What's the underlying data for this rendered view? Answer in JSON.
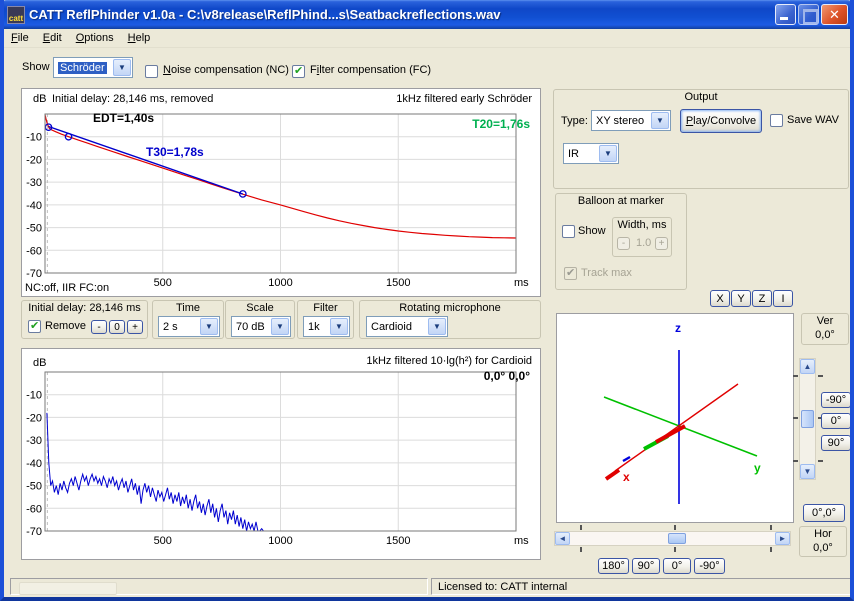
{
  "window": {
    "title": "CATT ReflPhinder v1.0a - C:\\v8release\\ReflPhind...s\\Seatbackreflections.wav",
    "icon_text": "catt"
  },
  "menu": [
    {
      "accel": "F",
      "rest": "ile"
    },
    {
      "accel": "E",
      "rest": "dit"
    },
    {
      "accel": "O",
      "rest": "ptions"
    },
    {
      "accel": "H",
      "rest": "elp"
    }
  ],
  "show": {
    "label": "Show",
    "value": "Schröder"
  },
  "compensation": {
    "nc": {
      "accel": "N",
      "rest": "oise compensation (NC)",
      "checked": false
    },
    "fc": {
      "pre": "F",
      "accel": "i",
      "rest": "lter compensation (FC)",
      "checked": true
    }
  },
  "controls": {
    "initial_delay": {
      "caption": "Initial delay: 28,146 ms",
      "remove_label": "Remove",
      "minus": "-",
      "zero": "0",
      "plus": "+",
      "checked": true
    },
    "time": {
      "caption": "Time",
      "value": "2 s"
    },
    "scale": {
      "caption": "Scale",
      "value": "70 dB"
    },
    "filter": {
      "caption": "Filter",
      "value": "1k"
    },
    "mic": {
      "caption": "Rotating microphone",
      "value": "Cardioid"
    }
  },
  "output": {
    "caption": "Output",
    "type_label": "Type:",
    "type_value": "XY stereo",
    "play": {
      "accel": "P",
      "rest": "lay/Convolve"
    },
    "save_wav": "Save WAV",
    "ir_value": "IR"
  },
  "balloon": {
    "caption": "Balloon at marker",
    "show_label": "Show",
    "width_caption": "Width, ms",
    "width_value": "1.0",
    "minus": "-",
    "plus": "+",
    "track_label": "Track max"
  },
  "axis_buttons": [
    "X",
    "Y",
    "Z",
    "I"
  ],
  "view3d": {
    "x_label": "x",
    "y_label": "y",
    "z_label": "z",
    "x_color": "#e00000",
    "y_color": "#00c000",
    "z_color": "#0000dd"
  },
  "ver_panel": {
    "label": "Ver",
    "value": "0,0°"
  },
  "hor_panel": {
    "label": "Hor",
    "value": "0,0°"
  },
  "ver_buttons": [
    "-90°",
    "0°",
    "90°"
  ],
  "reset_button": "0°,0°",
  "hor_buttons": [
    "180°",
    "90°",
    "0°",
    "-90°"
  ],
  "status": {
    "license": "Licensed to: CATT internal"
  },
  "chart_data": [
    {
      "type": "line",
      "id": "early-schroeder",
      "ylabel": "dB",
      "xlabel": "ms",
      "subtitle": "Initial delay: 28,146 ms, removed",
      "title": "1kHz filtered early Schröder",
      "footer": "NC:off, IIR FC:on",
      "xlim": [
        0,
        2000
      ],
      "ylim": [
        -70,
        0
      ],
      "x_ticks": [
        500,
        1000,
        1500
      ],
      "y_ticks": [
        -10,
        -20,
        -30,
        -40,
        -50,
        -60,
        -70
      ],
      "grid": true,
      "delay_marker_t": 10,
      "annotations": [
        {
          "id": "edt",
          "text": "EDT=1,40s",
          "color": "#000000"
        },
        {
          "id": "t30",
          "text": "T30=1,78s",
          "color": "#0000cc"
        },
        {
          "id": "t20",
          "text": "T20=1,76s",
          "color": "#00b050"
        }
      ],
      "series": [
        {
          "name": "schroeder-decay",
          "color": "#e00000",
          "width": 1.2,
          "points": [
            [
              0,
              -0.3
            ],
            [
              4,
              -2
            ],
            [
              10,
              -4.5
            ],
            [
              18,
              -6.2
            ],
            [
              28,
              -7
            ],
            [
              45,
              -7.8
            ],
            [
              70,
              -8.9
            ],
            [
              100,
              -10
            ],
            [
              140,
              -11.4
            ],
            [
              180,
              -12.8
            ],
            [
              220,
              -14.2
            ],
            [
              260,
              -15.6
            ],
            [
              300,
              -17
            ],
            [
              350,
              -18.7
            ],
            [
              400,
              -20.4
            ],
            [
              450,
              -22.1
            ],
            [
              500,
              -23.8
            ],
            [
              550,
              -25.5
            ],
            [
              600,
              -27.2
            ],
            [
              650,
              -28.9
            ],
            [
              700,
              -30.6
            ],
            [
              750,
              -32.3
            ],
            [
              800,
              -34
            ],
            [
              840,
              -35.3
            ],
            [
              880,
              -36.6
            ],
            [
              920,
              -37.8
            ],
            [
              960,
              -38.9
            ],
            [
              1000,
              -40
            ],
            [
              1050,
              -41.5
            ],
            [
              1100,
              -43
            ],
            [
              1150,
              -44.4
            ],
            [
              1200,
              -45.8
            ],
            [
              1250,
              -47
            ],
            [
              1300,
              -48.1
            ],
            [
              1350,
              -49.1
            ],
            [
              1400,
              -50
            ],
            [
              1450,
              -50.8
            ],
            [
              1500,
              -51.5
            ],
            [
              1550,
              -52.1
            ],
            [
              1600,
              -52.6
            ],
            [
              1650,
              -53
            ],
            [
              1700,
              -53.4
            ],
            [
              1750,
              -53.7
            ],
            [
              1800,
              -54
            ],
            [
              1850,
              -54.2
            ],
            [
              1900,
              -54.4
            ],
            [
              1950,
              -54.5
            ],
            [
              2000,
              -54.6
            ]
          ]
        },
        {
          "name": "regression-fit",
          "color": "#0000cc",
          "width": 1.4,
          "points": [
            [
              15,
              -5.5
            ],
            [
              840,
              -35.2
            ]
          ]
        }
      ],
      "markers": {
        "color": "#0000cc",
        "points": [
          [
            15,
            -5.8
          ],
          [
            100,
            -10
          ],
          [
            840,
            -35.2
          ]
        ]
      }
    },
    {
      "type": "line",
      "id": "impulse-response",
      "ylabel": "dB",
      "xlabel": "ms",
      "title": "1kHz filtered 10·lg(h²) for Cardioid",
      "angle_label": "0,0° 0,0°",
      "xlim": [
        0,
        2000
      ],
      "ylim": [
        -70,
        0
      ],
      "x_ticks": [
        500,
        1000,
        1500
      ],
      "y_ticks": [
        -10,
        -20,
        -30,
        -40,
        -50,
        -60,
        -70
      ],
      "grid": true,
      "delay_marker_t": 10,
      "tail": {
        "t": 2000,
        "db": -70
      },
      "series": [
        {
          "name": "ir-level",
          "color": "#0000d0",
          "width": 1,
          "t_start": 8,
          "t_step": 8,
          "values": [
            -18,
            -40,
            -50,
            -48,
            -53,
            -50,
            -54,
            -49,
            -52,
            -48,
            -51,
            -53,
            -49,
            -47,
            -50,
            -46,
            -49,
            -52,
            -48,
            -45,
            -48,
            -46,
            -50,
            -47,
            -45,
            -48,
            -46,
            -49,
            -47,
            -50,
            -46,
            -48,
            -51,
            -47,
            -49,
            -46,
            -50,
            -48,
            -52,
            -49,
            -47,
            -51,
            -48,
            -53,
            -50,
            -47,
            -52,
            -49,
            -54,
            -50,
            -58,
            -52,
            -49,
            -53,
            -50,
            -55,
            -51,
            -54,
            -57,
            -52,
            -55,
            -53,
            -57,
            -54,
            -51,
            -56,
            -53,
            -58,
            -54,
            -57,
            -53,
            -59,
            -55,
            -58,
            -54,
            -60,
            -56,
            -61,
            -57,
            -54,
            -60,
            -57,
            -62,
            -58,
            -63,
            -59,
            -56,
            -62,
            -58,
            -64,
            -60,
            -66,
            -61,
            -58,
            -64,
            -61,
            -67,
            -62,
            -65,
            -61,
            -67,
            -63,
            -68,
            -64,
            -69,
            -65,
            -70,
            -66,
            -69,
            -67,
            -70,
            -66,
            -70,
            -70,
            -69,
            -70
          ]
        }
      ]
    }
  ]
}
